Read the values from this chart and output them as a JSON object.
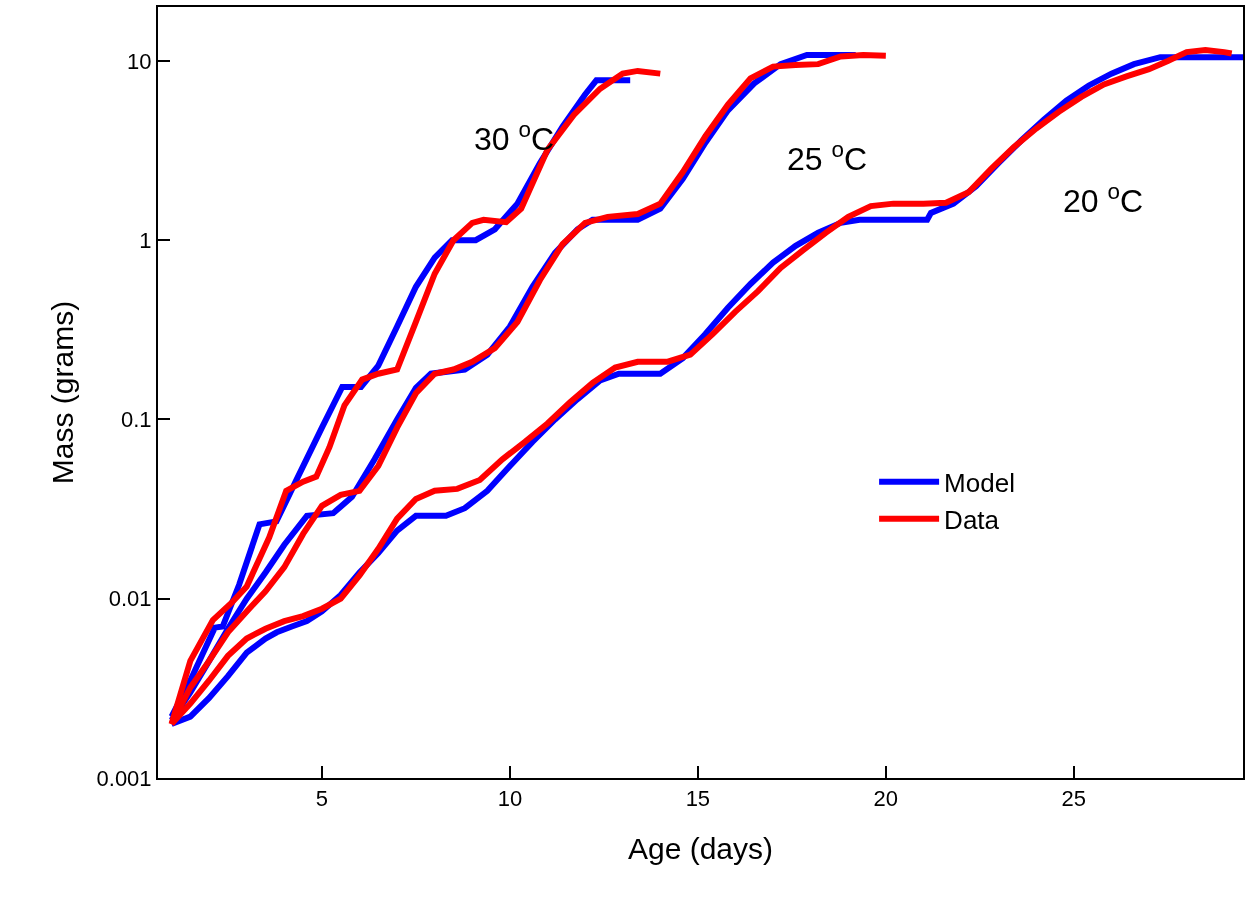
{
  "chart_data": {
    "type": "line",
    "xlabel": "Age (days)",
    "ylabel": "Mass (grams)",
    "log": "y",
    "xlim": [
      0.64,
      29.5
    ],
    "xticks": [
      5,
      10,
      15,
      20,
      25
    ],
    "ylim": [
      0.001,
      20
    ],
    "yticks": [
      0.001,
      0.01,
      0.1,
      1,
      10
    ],
    "grid": false,
    "legend": "right",
    "marker": "none",
    "line_style": "solid",
    "series": [
      {
        "name": "Model",
        "color": "#0000ff",
        "x": [
          1.0,
          1.5,
          2.15,
          2.36,
          2.8,
          3.34,
          3.79,
          4.3,
          5.0,
          5.54,
          6.04,
          6.5,
          7.0,
          7.5,
          8.0,
          8.46,
          9.09,
          9.6,
          10.2,
          10.8,
          11.4,
          12.0,
          12.3,
          13.2
        ],
        "values": [
          0.0022,
          0.0035,
          0.0069,
          0.007,
          0.012,
          0.026,
          0.027,
          0.045,
          0.09,
          0.152,
          0.152,
          0.2,
          0.33,
          0.55,
          0.8,
          1.0,
          1.0,
          1.15,
          1.6,
          2.7,
          4.3,
          6.5,
          7.8,
          7.8
        ]
      },
      {
        "color": "#0000ff",
        "x": [
          1.0,
          1.5,
          2.0,
          2.5,
          3.0,
          3.5,
          4.0,
          4.6,
          5.3,
          5.8,
          6.4,
          7.0,
          7.5,
          7.9,
          8.8,
          9.4,
          10.0,
          10.6,
          11.2,
          11.8,
          12.2,
          13.4,
          14.0,
          14.6,
          15.2,
          15.8,
          16.5,
          17.2,
          17.9,
          19.2
        ],
        "values": [
          0.0021,
          0.003,
          0.0045,
          0.0068,
          0.01,
          0.014,
          0.02,
          0.029,
          0.03,
          0.037,
          0.06,
          0.1,
          0.15,
          0.18,
          0.19,
          0.23,
          0.33,
          0.55,
          0.85,
          1.15,
          1.3,
          1.3,
          1.5,
          2.2,
          3.5,
          5.3,
          7.5,
          9.6,
          10.8,
          10.8
        ]
      },
      {
        "color": "#0000ff",
        "x": [
          1.0,
          1.5,
          2.0,
          2.5,
          3.0,
          3.5,
          3.8,
          4.2,
          4.6,
          5.0,
          5.5,
          6.0,
          6.5,
          7.0,
          7.5,
          8.3,
          8.8,
          9.4,
          10.0,
          10.6,
          11.2,
          11.8,
          12.4,
          12.9,
          14.0,
          14.6,
          15.2,
          15.8,
          16.4,
          17.0,
          17.6,
          18.2,
          18.8,
          19.3,
          21.1,
          21.2,
          21.8,
          22.4,
          23.0,
          23.6,
          24.2,
          24.8,
          25.4,
          26.0,
          26.6,
          27.3,
          29.5
        ],
        "values": [
          0.002,
          0.0022,
          0.0028,
          0.0037,
          0.005,
          0.006,
          0.0065,
          0.007,
          0.0075,
          0.0085,
          0.0105,
          0.014,
          0.018,
          0.024,
          0.029,
          0.029,
          0.032,
          0.04,
          0.055,
          0.075,
          0.1,
          0.13,
          0.165,
          0.18,
          0.18,
          0.22,
          0.3,
          0.42,
          0.57,
          0.75,
          0.93,
          1.1,
          1.25,
          1.3,
          1.3,
          1.42,
          1.6,
          2.0,
          2.7,
          3.6,
          4.7,
          6.0,
          7.3,
          8.5,
          9.6,
          10.5,
          10.5
        ]
      },
      {
        "name": "Data",
        "color": "#ff0000",
        "x": [
          1.0,
          1.5,
          2.1,
          2.6,
          3.0,
          3.6,
          4.05,
          4.5,
          4.85,
          5.2,
          5.6,
          6.07,
          6.5,
          7.0,
          7.5,
          8.0,
          8.5,
          9.0,
          9.3,
          9.9,
          10.3,
          11.0,
          11.7,
          12.4,
          13.0,
          13.4,
          14.0
        ],
        "values": [
          0.002,
          0.0045,
          0.0076,
          0.0095,
          0.0117,
          0.022,
          0.04,
          0.045,
          0.048,
          0.07,
          0.12,
          0.167,
          0.18,
          0.19,
          0.35,
          0.65,
          1.0,
          1.25,
          1.3,
          1.26,
          1.5,
          3.2,
          5.0,
          7.0,
          8.5,
          8.8,
          8.5
        ]
      },
      {
        "color": "#ff0000",
        "x": [
          1.0,
          1.5,
          2.0,
          2.5,
          3.0,
          3.5,
          4.0,
          4.5,
          5.0,
          5.5,
          6.0,
          6.5,
          7.0,
          7.5,
          8.0,
          8.5,
          9.0,
          9.6,
          10.2,
          10.8,
          11.4,
          12.0,
          12.6,
          13.4,
          14.0,
          14.6,
          15.2,
          15.8,
          16.4,
          17.0,
          17.6,
          18.2,
          18.8,
          19.4,
          20.0
        ],
        "values": [
          0.002,
          0.0032,
          0.0045,
          0.0065,
          0.0085,
          0.011,
          0.015,
          0.023,
          0.033,
          0.038,
          0.04,
          0.055,
          0.09,
          0.14,
          0.18,
          0.19,
          0.21,
          0.25,
          0.35,
          0.6,
          0.95,
          1.25,
          1.35,
          1.4,
          1.6,
          2.4,
          3.8,
          5.7,
          8.0,
          9.3,
          9.5,
          9.6,
          10.6,
          10.8,
          10.7
        ]
      },
      {
        "color": "#ff0000",
        "x": [
          1.0,
          1.5,
          2.0,
          2.5,
          3.0,
          3.5,
          4.0,
          4.5,
          5.0,
          5.5,
          6.0,
          6.5,
          7.0,
          7.5,
          8.0,
          8.6,
          9.2,
          9.8,
          10.4,
          11.0,
          11.6,
          12.2,
          12.8,
          13.4,
          14.2,
          14.8,
          15.4,
          16.0,
          16.6,
          17.2,
          17.8,
          18.4,
          19.0,
          19.6,
          20.2,
          21.0,
          21.6,
          22.2,
          22.8,
          23.4,
          24.0,
          24.6,
          25.2,
          25.8,
          26.4,
          27.0,
          27.5,
          28.0,
          28.5,
          29.0,
          29.2
        ],
        "values": [
          0.002,
          0.0026,
          0.0035,
          0.0048,
          0.006,
          0.0068,
          0.0075,
          0.008,
          0.0088,
          0.01,
          0.0135,
          0.019,
          0.028,
          0.036,
          0.04,
          0.041,
          0.046,
          0.06,
          0.075,
          0.095,
          0.125,
          0.16,
          0.195,
          0.21,
          0.21,
          0.23,
          0.3,
          0.4,
          0.52,
          0.7,
          0.88,
          1.1,
          1.35,
          1.55,
          1.6,
          1.6,
          1.62,
          1.85,
          2.5,
          3.3,
          4.2,
          5.2,
          6.3,
          7.4,
          8.2,
          9.0,
          10.0,
          11.2,
          11.5,
          11.2,
          11.0
        ]
      }
    ],
    "annotations": [
      "30 $^{o}$C",
      "25 $^{o}$C",
      "20 $^{o}$C"
    ]
  }
}
